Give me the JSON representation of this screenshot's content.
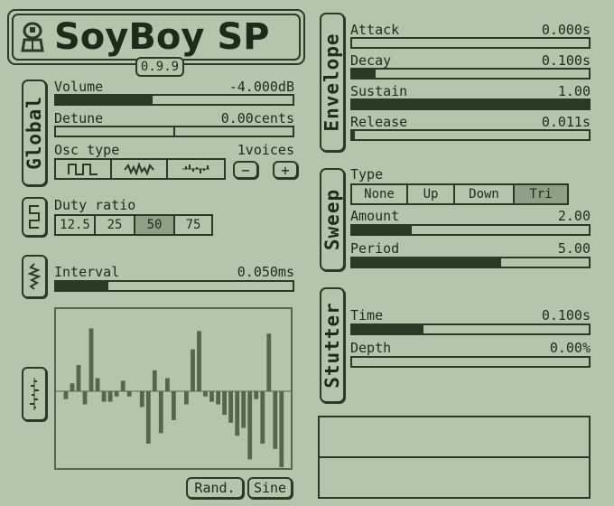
{
  "header": {
    "title": "SoyBoy SP",
    "version": "0.9.9"
  },
  "global": {
    "tab_label": "Global",
    "volume": {
      "label": "Volume",
      "value": "-4.000dB",
      "level": 0.41
    },
    "detune": {
      "label": "Detune",
      "value": "0.00cents",
      "level": 0.5
    },
    "osc": {
      "label": "Osc type",
      "voices": "1voices",
      "minus": "−",
      "plus": "+",
      "selected": 0,
      "types": [
        "square-wave-icon",
        "noise-wave-icon",
        "waveform-table-icon"
      ]
    }
  },
  "duty": {
    "label": "Duty ratio",
    "options": [
      "12.5",
      "25",
      "50",
      "75"
    ],
    "selected": 2
  },
  "noise": {
    "interval": {
      "label": "Interval",
      "value": "0.050ms",
      "level": 0.22
    }
  },
  "wavetable": {
    "samples": [
      0,
      -3,
      3,
      10,
      -5,
      24,
      5,
      -4,
      -4,
      -2,
      4,
      -2,
      0,
      -6,
      -20,
      8,
      -16,
      5,
      -11,
      0,
      -5,
      16,
      23,
      -2,
      -4,
      -5,
      -9,
      -12,
      -17,
      -14,
      -26,
      -3,
      -20,
      22,
      -22,
      -29,
      0
    ],
    "rand_label": "Rand.",
    "sine_label": "Sine"
  },
  "envelope": {
    "tab_label": "Envelope",
    "attack": {
      "label": "Attack",
      "value": "0.000s",
      "level": 0.0
    },
    "decay": {
      "label": "Decay",
      "value": "0.100s",
      "level": 0.1
    },
    "sustain": {
      "label": "Sustain",
      "value": "1.00",
      "level": 1.0
    },
    "release": {
      "label": "Release",
      "value": "0.011s",
      "level": 0.01
    }
  },
  "sweep": {
    "tab_label": "Sweep",
    "type": {
      "label": "Type",
      "options": [
        "None",
        "Up",
        "Down",
        "Tri"
      ],
      "selected": 3
    },
    "amount": {
      "label": "Amount",
      "value": "2.00",
      "level": 0.25
    },
    "period": {
      "label": "Period",
      "value": "5.00",
      "level": 0.63
    }
  },
  "stutter": {
    "tab_label": "Stutter",
    "time": {
      "label": "Time",
      "value": "0.100s",
      "level": 0.3
    },
    "depth": {
      "label": "Depth",
      "value": "0.00%",
      "level": 0.0
    }
  },
  "colors": {
    "background": "#b6c4ae",
    "ink": "#2b3a27",
    "selected": "#8f9f88",
    "wave_bar": "#56664e"
  }
}
